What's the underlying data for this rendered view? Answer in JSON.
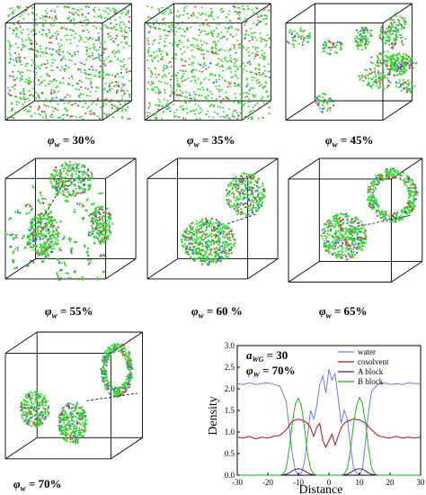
{
  "panels": [
    {
      "id": "p30",
      "phi_symbol": "φ",
      "phi_sub": "w",
      "eq": " = ",
      "value": "30%",
      "morphology": "dispersed"
    },
    {
      "id": "p35",
      "phi_symbol": "φ",
      "phi_sub": "w",
      "eq": " = ",
      "value": "35%",
      "morphology": "dispersed"
    },
    {
      "id": "p45",
      "phi_symbol": "φ",
      "phi_sub": "w",
      "eq": " = ",
      "value": "45%",
      "morphology": "clusters"
    },
    {
      "id": "p55",
      "phi_symbol": "φ",
      "phi_sub": "w",
      "eq": " = ",
      "value": "55%",
      "morphology": "aggregates"
    },
    {
      "id": "p60",
      "phi_symbol": "φ",
      "phi_sub": "w",
      "eq": " = ",
      "value": "60 %",
      "morphology": "aggregates"
    },
    {
      "id": "p65",
      "phi_symbol": "φ",
      "phi_sub": "w",
      "eq": " = ",
      "value": "65%",
      "morphology": "vesicle"
    },
    {
      "id": "p70",
      "phi_symbol": "φ",
      "phi_sub": "w",
      "eq": " = ",
      "value": "70%",
      "morphology": "vesicle"
    }
  ],
  "colors": {
    "particles_main": "#33d133",
    "particles_red": "#e03030",
    "particles_blue": "#3050ff",
    "box_edge": "#000000",
    "water": "#6a7fdc",
    "cosolvent": "#a01818",
    "a_block": "#3a1a7a",
    "b_block": "#22b022"
  },
  "chart_data": {
    "type": "line",
    "annotation_param": "a",
    "annotation_param_sub": "WG",
    "annotation_param_value": " = 30",
    "annotation_phi": "φ",
    "annotation_phi_sub": "W",
    "annotation_phi_value": " = 70%",
    "xlabel": "Distance",
    "ylabel": "Density",
    "xlim": [
      -30,
      30
    ],
    "ylim": [
      0,
      3.0
    ],
    "xticks": [
      -30,
      -20,
      -10,
      0,
      10,
      20,
      30
    ],
    "yticks": [
      0.0,
      0.5,
      1.0,
      1.5,
      2.0,
      2.5,
      3.0
    ],
    "legend_position": "top-right",
    "series": [
      {
        "name": "water",
        "color": "#6a7fdc",
        "x": [
          -30,
          -28,
          -26,
          -24,
          -22,
          -20,
          -18,
          -16,
          -14,
          -13,
          -12,
          -11,
          -10,
          -9,
          -8,
          -7,
          -6,
          -5,
          -4,
          -3,
          -2,
          -1,
          0,
          1,
          2,
          3,
          4,
          5,
          6,
          7,
          8,
          9,
          10,
          11,
          12,
          13,
          14,
          16,
          18,
          20,
          22,
          24,
          26,
          28,
          30
        ],
        "y": [
          2.12,
          2.1,
          2.14,
          2.1,
          2.12,
          2.14,
          2.1,
          2.06,
          1.7,
          1.1,
          0.5,
          0.1,
          0.02,
          0.05,
          0.3,
          0.9,
          1.5,
          1.3,
          1.6,
          2.1,
          2.3,
          1.9,
          2.45,
          2.2,
          2.35,
          1.8,
          1.2,
          1.5,
          1.3,
          0.7,
          0.2,
          0.05,
          0.02,
          0.15,
          0.8,
          1.5,
          1.95,
          2.1,
          2.14,
          2.1,
          2.12,
          2.1,
          2.14,
          2.12,
          2.12
        ]
      },
      {
        "name": "cosolvent",
        "color": "#a01818",
        "x": [
          -30,
          -28,
          -26,
          -24,
          -22,
          -20,
          -18,
          -16,
          -14,
          -12,
          -10,
          -8,
          -7,
          -6,
          -5,
          -4,
          -3,
          -2,
          -1,
          0,
          1,
          2,
          3,
          4,
          5,
          6,
          8,
          10,
          12,
          14,
          16,
          18,
          20,
          22,
          24,
          26,
          28,
          30
        ],
        "y": [
          0.88,
          0.86,
          0.9,
          0.84,
          0.88,
          0.86,
          0.9,
          0.92,
          1.05,
          1.25,
          1.3,
          1.25,
          1.2,
          1.1,
          0.9,
          1.1,
          1.2,
          0.8,
          0.65,
          0.8,
          0.95,
          0.7,
          0.9,
          1.1,
          1.2,
          1.25,
          1.3,
          1.28,
          1.2,
          1.05,
          0.92,
          0.88,
          0.86,
          0.9,
          0.86,
          0.88,
          0.86,
          0.88
        ]
      },
      {
        "name": "A block",
        "color": "#3a1a7a",
        "x": [
          -30,
          -16,
          -14,
          -13,
          -12,
          -11,
          -10,
          -9,
          -8,
          -7,
          -6,
          -4,
          -2,
          0,
          2,
          4,
          6,
          7,
          8,
          9,
          10,
          11,
          12,
          13,
          14,
          16,
          30
        ],
        "y": [
          0,
          0,
          0.02,
          0.05,
          0.1,
          0.14,
          0.15,
          0.14,
          0.1,
          0.06,
          0.02,
          0,
          0,
          0,
          0,
          0,
          0.02,
          0.06,
          0.1,
          0.14,
          0.15,
          0.14,
          0.1,
          0.05,
          0.02,
          0,
          0
        ]
      },
      {
        "name": "B block",
        "color": "#22b022",
        "x": [
          -30,
          -16,
          -15,
          -14,
          -13,
          -12,
          -11,
          -10,
          -9,
          -8,
          -7,
          -6,
          -5,
          -4,
          -2,
          0,
          2,
          4,
          5,
          6,
          7,
          8,
          9,
          10,
          11,
          12,
          13,
          14,
          15,
          16,
          30
        ],
        "y": [
          0,
          0,
          0.03,
          0.15,
          0.6,
          1.2,
          1.65,
          1.78,
          1.6,
          1.1,
          0.5,
          0.15,
          0.03,
          0,
          0,
          0,
          0,
          0,
          0.03,
          0.15,
          0.55,
          1.15,
          1.6,
          1.8,
          1.65,
          1.2,
          0.6,
          0.15,
          0.03,
          0,
          0
        ]
      }
    ]
  }
}
